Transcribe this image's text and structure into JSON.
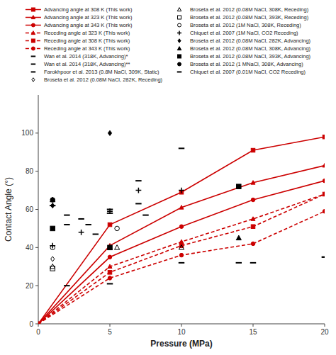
{
  "chart_data": {
    "type": "line",
    "xlabel": "Pressure (MPa)",
    "ylabel": "Contact Angle (°)",
    "xlim": [
      0,
      20
    ],
    "ylim": [
      0,
      120
    ],
    "xticks": [
      0,
      5,
      10,
      15,
      20
    ],
    "yticks": [
      0,
      20,
      40,
      60,
      80,
      100
    ],
    "grid": false,
    "legend": "top",
    "series": [
      {
        "name": "Advancing angle at 308 K (This work)",
        "type": "line",
        "color": "#cc0000",
        "line_style": "solid",
        "marker": "square",
        "x": [
          0,
          5,
          10,
          15,
          20
        ],
        "values": [
          0,
          52,
          69,
          91,
          98
        ]
      },
      {
        "name": "Advancing angle at 323 K (This work)",
        "type": "line",
        "color": "#cc0000",
        "line_style": "solid",
        "marker": "triangle",
        "x": [
          0,
          5,
          10,
          15,
          20
        ],
        "values": [
          0,
          41,
          61,
          74,
          83
        ]
      },
      {
        "name": "Advancing angle at 343 K (This work)",
        "type": "line",
        "color": "#cc0000",
        "line_style": "solid",
        "marker": "circle",
        "x": [
          0,
          5,
          10,
          15,
          20
        ],
        "values": [
          0,
          35,
          51,
          65,
          75
        ]
      },
      {
        "name": "Receding angle at 323 K (This work)",
        "type": "line",
        "color": "#cc0000",
        "line_style": "dashed",
        "marker": "triangle",
        "x": [
          0,
          5,
          10,
          15,
          20
        ],
        "values": [
          0,
          30,
          43,
          55,
          68
        ]
      },
      {
        "name": "Receding angle at 308 K (This work)",
        "type": "line",
        "color": "#cc0000",
        "line_style": "dashed",
        "marker": "square",
        "x": [
          0,
          5,
          10,
          15,
          20
        ],
        "values": [
          0,
          27,
          41,
          51,
          68
        ]
      },
      {
        "name": "Receding angle at 343 K (This work)",
        "type": "line",
        "color": "#cc0000",
        "line_style": "dashed",
        "marker": "circle",
        "x": [
          0,
          5,
          10,
          15,
          20
        ],
        "values": [
          0,
          24,
          36,
          42,
          59
        ]
      },
      {
        "name": "Wan et al. 2014 (318K, Advancing)*",
        "type": "scatter",
        "color": "#000000",
        "marker": "hline",
        "x": [
          2,
          3.5,
          5,
          7
        ],
        "values": [
          57,
          52,
          60,
          75
        ]
      },
      {
        "name": "Wan et al. 2014 (318K, Advancing)**",
        "type": "scatter",
        "color": "#000000",
        "marker": "hline",
        "x": [
          1,
          3,
          5,
          7,
          10,
          14,
          20
        ],
        "values": [
          62,
          55,
          58,
          63,
          92,
          32,
          35
        ]
      },
      {
        "name": "Farokhpoor et al. 2013 (0.8M NaCl, 309K, Static)",
        "type": "scatter",
        "color": "#000000",
        "marker": "hline",
        "x": [
          2,
          4,
          7.5
        ],
        "values": [
          52,
          47,
          57
        ]
      },
      {
        "name": "Broseta et al. 2012 (0.08M NaCl, 282K, Receding)",
        "type": "scatter",
        "color": "#000000",
        "marker": "diamond-open",
        "x": [
          1
        ],
        "values": [
          34
        ]
      },
      {
        "name": "Broseta et al. 2012 (0.08M NaCl, 308K, Receding)",
        "type": "scatter",
        "color": "#000000",
        "marker": "triangle-open",
        "x": [
          1,
          5.5,
          10
        ],
        "values": [
          30,
          40,
          40
        ]
      },
      {
        "name": "Broseta et al. 2012 (0.08M NaCl, 393K, Receding)",
        "type": "scatter",
        "color": "#000000",
        "marker": "square-open",
        "x": [
          1
        ],
        "values": [
          29
        ]
      },
      {
        "name": "Broseta et al. 2012 (1M NaCl, 308K, Receding)",
        "type": "scatter",
        "color": "#000000",
        "marker": "circle-open",
        "x": [
          1,
          5.5
        ],
        "values": [
          40,
          50
        ]
      },
      {
        "name": "Chiquet et al. 2007 (1M NaCl, CO2 Receding)",
        "type": "scatter",
        "color": "#000000",
        "marker": "plus",
        "x": [
          1,
          3,
          5,
          7,
          10
        ],
        "values": [
          41,
          48,
          59,
          70,
          70
        ]
      },
      {
        "name": "Broseta et al. 2012 (0.08M NaCl, 282K, Advancing)",
        "type": "scatter",
        "color": "#000000",
        "marker": "diamond",
        "x": [
          1,
          5
        ],
        "values": [
          62,
          100
        ]
      },
      {
        "name": "Broseta et al. 2012 (0.08M NaCl, 308K, Advancing)",
        "type": "scatter",
        "color": "#000000",
        "marker": "triangle",
        "x": [
          1,
          5,
          14
        ],
        "values": [
          65,
          40,
          45
        ]
      },
      {
        "name": "Broseta et al. 2012 (0.08M NaCl, 393K, Advancing)",
        "type": "scatter",
        "color": "#000000",
        "marker": "square",
        "x": [
          1,
          5,
          14
        ],
        "values": [
          50,
          40,
          72
        ]
      },
      {
        "name": "Broseta et al. 2012 (1 MNaCl, 308K, Advancing)",
        "type": "scatter",
        "color": "#000000",
        "marker": "circle",
        "x": [
          1
        ],
        "values": [
          65
        ]
      },
      {
        "name": "Chiquet et al. 2007 (0.01M NaCl, CO2 Receding)",
        "type": "scatter",
        "color": "#000000",
        "marker": "hline",
        "x": [
          2,
          5,
          10,
          15,
          20
        ],
        "values": [
          20,
          21,
          32,
          32,
          35
        ]
      }
    ]
  }
}
